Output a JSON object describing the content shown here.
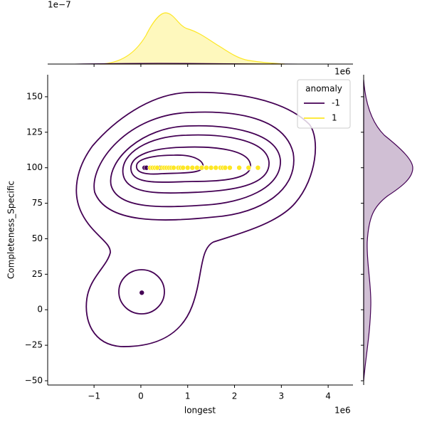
{
  "chart_data": {
    "type": "scatter",
    "x_label": "longest",
    "y_label": "Completeness_Specific",
    "x_offset_label": "1e6",
    "top_x_offset_label": "1e6",
    "top_y_offset_label": "1e−7",
    "legend_title": "anomaly",
    "legend": "upper right",
    "xlim": [
      -1.99,
      4.53
    ],
    "ylim": [
      -53,
      165.5
    ],
    "xticks": [
      {
        "value": -1,
        "label": "−1"
      },
      0,
      1,
      2,
      3,
      4
    ],
    "yticks": [
      {
        "value": -50,
        "label": "−50"
      },
      {
        "value": -25,
        "label": "−25"
      },
      0,
      25,
      50,
      75,
      100,
      125,
      150
    ],
    "series": [
      {
        "name": "-1",
        "color": "#440154",
        "x": [
          0.08,
          0.12,
          0.4,
          0.42,
          0.02
        ],
        "values": [
          100,
          100,
          100,
          100,
          12
        ]
      },
      {
        "name": "1",
        "color": "#fde725",
        "x": [
          0.2,
          0.25,
          0.3,
          0.35,
          0.45,
          0.5,
          0.55,
          0.6,
          0.65,
          0.7,
          0.8,
          0.85,
          0.9,
          1.0,
          1.1,
          1.2,
          1.3,
          1.4,
          1.5,
          1.6,
          1.7,
          1.75,
          1.8,
          1.9,
          2.1,
          2.3,
          2.5
        ],
        "values": [
          100,
          100,
          100,
          100,
          100,
          100,
          100,
          100,
          100,
          100,
          100,
          100,
          100,
          100,
          100,
          100,
          100,
          100,
          100,
          100,
          100,
          100,
          100,
          100,
          100,
          100,
          100
        ]
      }
    ]
  }
}
